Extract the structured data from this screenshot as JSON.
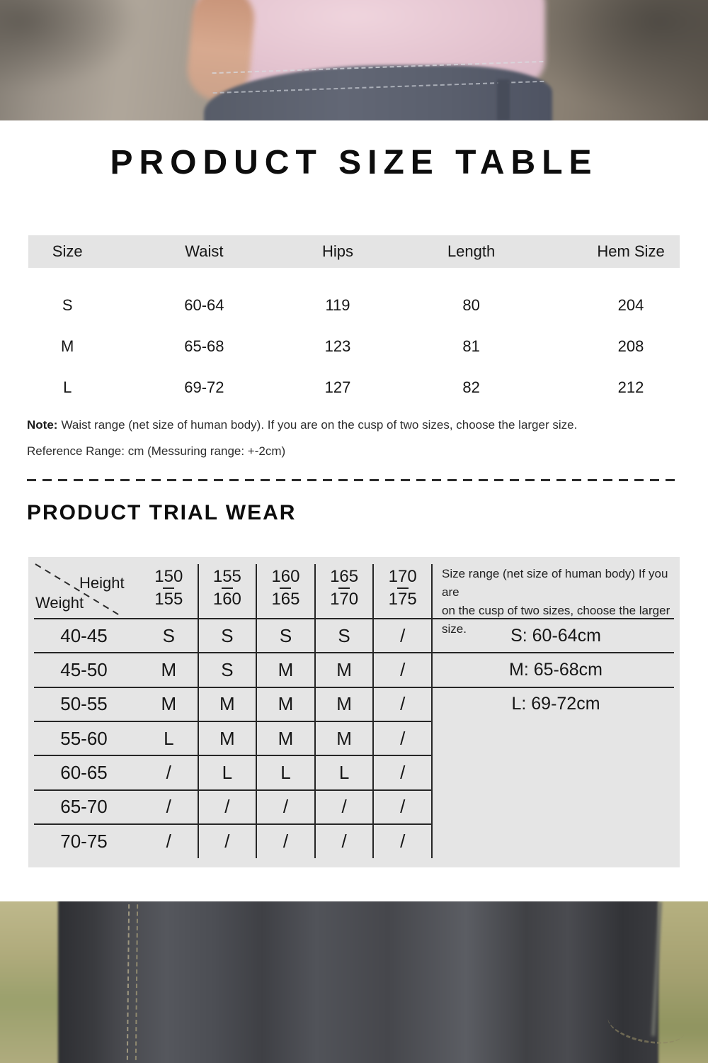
{
  "size_table": {
    "title": "PRODUCT SIZE TABLE",
    "headers": [
      "Size",
      "Waist",
      "Hips",
      "Length",
      "Hem Size"
    ],
    "rows": [
      [
        "S",
        "60-64",
        "119",
        "80",
        "204"
      ],
      [
        "M",
        "65-68",
        "123",
        "81",
        "208"
      ],
      [
        "L",
        "69-72",
        "127",
        "82",
        "212"
      ]
    ],
    "note_label": "Note:",
    "note_text": "Waist range (net size of human body). If you are on the cusp of two sizes, choose the larger size.",
    "reference_text": "Reference Range: cm (Messuring range: +-2cm)"
  },
  "trial_table": {
    "title": "PRODUCT TRIAL WEAR",
    "corner": {
      "top_label": "Height",
      "bottom_label": "Weight"
    },
    "height_columns": [
      [
        "150",
        "155"
      ],
      [
        "155",
        "160"
      ],
      [
        "160",
        "165"
      ],
      [
        "165",
        "170"
      ],
      [
        "170",
        "175"
      ]
    ],
    "weight_rows": [
      "40-45",
      "45-50",
      "50-55",
      "55-60",
      "60-65",
      "65-70",
      "70-75"
    ],
    "cells": [
      [
        "S",
        "S",
        "S",
        "S",
        "/"
      ],
      [
        "M",
        "S",
        "M",
        "M",
        "/"
      ],
      [
        "M",
        "M",
        "M",
        "M",
        "/"
      ],
      [
        "L",
        "M",
        "M",
        "M",
        "/"
      ],
      [
        "/",
        "L",
        "L",
        "L",
        "/"
      ],
      [
        "/",
        "/",
        "/",
        "/",
        "/"
      ],
      [
        "/",
        "/",
        "/",
        "/",
        "/"
      ]
    ],
    "side_note_lines": [
      "Size range (net size of human body) If you are",
      "on the cusp of two sizes, choose the larger size."
    ],
    "size_ranges": [
      "S: 60-64cm",
      "M: 65-68cm",
      "L: 69-72cm"
    ]
  },
  "colors": {
    "panel_gray": "#e5e5e5",
    "line_dark": "#262626",
    "text": "#111111"
  }
}
